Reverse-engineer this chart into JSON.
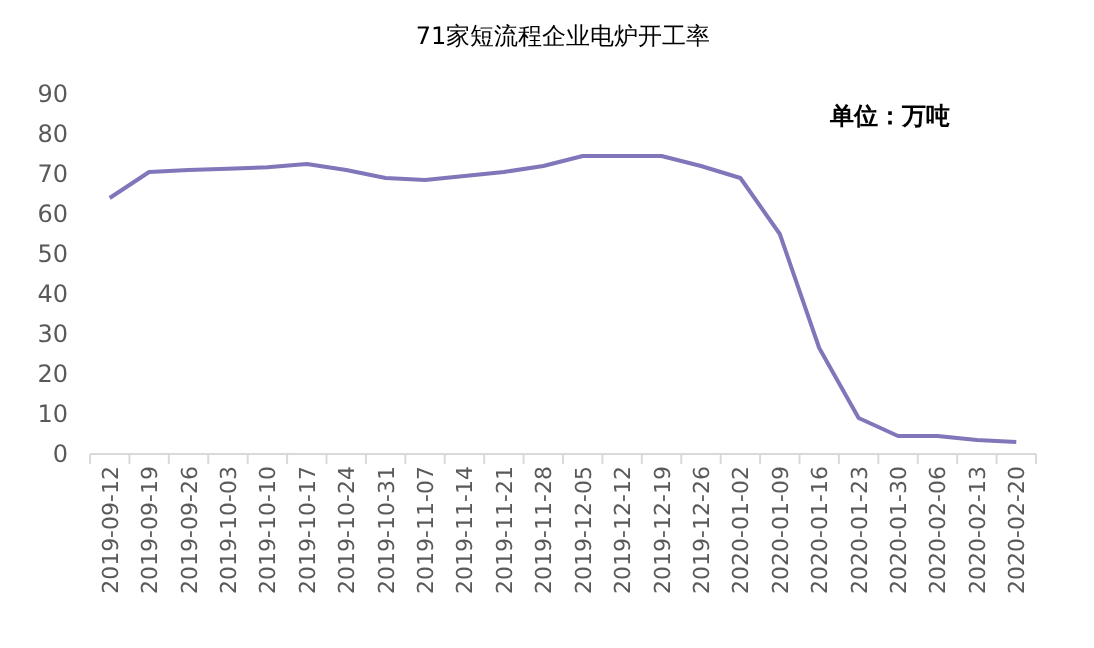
{
  "chart_data": {
    "type": "line",
    "title": "71家短流程企业电炉开工率",
    "annotations": [
      "单位：万吨"
    ],
    "categories": [
      "2019-09-12",
      "2019-09-19",
      "2019-09-26",
      "2019-10-03",
      "2019-10-10",
      "2019-10-17",
      "2019-10-24",
      "2019-10-31",
      "2019-11-07",
      "2019-11-14",
      "2019-11-21",
      "2019-11-28",
      "2019-12-05",
      "2019-12-12",
      "2019-12-19",
      "2019-12-26",
      "2020-01-02",
      "2020-01-09",
      "2020-01-16",
      "2020-01-23",
      "2020-01-30",
      "2020-02-06",
      "2020-02-13",
      "2020-02-20"
    ],
    "series": [
      {
        "color": "#7f77b9",
        "values": [
          64,
          70.5,
          71,
          71.3,
          71.7,
          72.5,
          71,
          69,
          68.5,
          69.5,
          70.5,
          72,
          74.5,
          74.5,
          74.5,
          72,
          69,
          55,
          26.5,
          9,
          4.5,
          4.5,
          3.5,
          3
        ]
      }
    ],
    "ylim": [
      0,
      90
    ],
    "yticks": [
      0,
      10,
      20,
      30,
      40,
      50,
      60,
      70,
      80,
      90
    ]
  }
}
